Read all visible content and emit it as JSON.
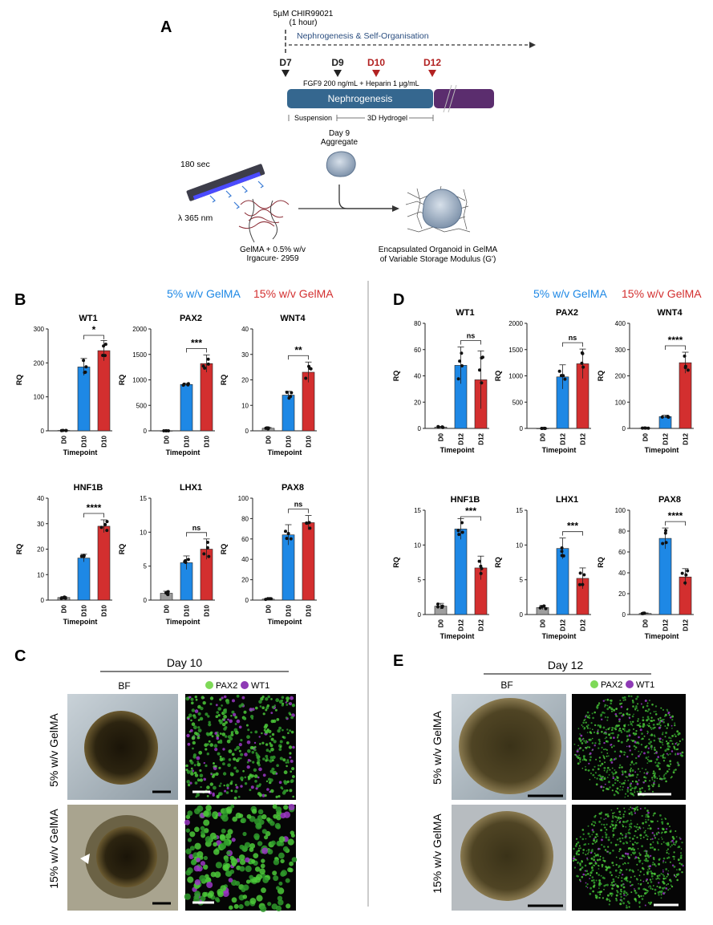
{
  "panel_letters": {
    "a": "A",
    "b": "B",
    "c": "C",
    "d": "D",
    "e": "E"
  },
  "schematic": {
    "chir_line1": "5µM CHIR99021",
    "chir_line2": "(1 hour)",
    "self_org": "Nephrogenesis & Self-Organisation",
    "days": [
      {
        "label": "D7",
        "color": "#222222"
      },
      {
        "label": "D9",
        "color": "#222222"
      },
      {
        "label": "D10",
        "color": "#b22222"
      },
      {
        "label": "D12",
        "color": "#b22222"
      }
    ],
    "fgf_text": "FGF9 200 ng/mL + Heparin 1 µg/mL",
    "bar_label": "Nephrogenesis",
    "suspension": "Suspension",
    "hydrogel": "3D Hydrogel",
    "aggregate_line1": "Day 9",
    "aggregate_line2": "Aggregate",
    "uv_time": "180 sec",
    "uv_wavelength": "λ 365 nm",
    "gelma_line1": "GelMA + 0.5% w/v",
    "gelma_line2": "Irgacure- 2959",
    "encap_line1": "Encapsulated Organoid in GelMA",
    "encap_line2": "of Variable Storage Modulus (G')"
  },
  "legend": {
    "five": "5% w/v GelMA",
    "fifteen": "15% w/v GelMA",
    "color_five": "#1e88e5",
    "color_fifteen": "#d32f2f"
  },
  "colors": {
    "grey": "#9e9e9e",
    "blue": "#1e88e5",
    "red": "#d32f2f"
  },
  "panel_c": {
    "day": "Day 10",
    "bf": "BF",
    "pax2": "PAX2",
    "wt1": "WT1",
    "row1": "5% w/v GelMA",
    "row2": "15% w/v GelMA"
  },
  "panel_e": {
    "day": "Day 12",
    "bf": "BF",
    "pax2": "PAX2",
    "wt1": "WT1",
    "row1": "5% w/v GelMA",
    "row2": "15% w/v GelMA"
  },
  "chart_data": [
    {
      "type": "bar",
      "panel": "B",
      "title": "WT1",
      "ylabel": "RQ",
      "xlabel": "Timepoint",
      "categories": [
        "D0",
        "D10",
        "D10"
      ],
      "values": [
        1,
        188,
        236
      ],
      "errors": [
        0.5,
        25,
        30
      ],
      "ylim": [
        0,
        300
      ],
      "ticks": [
        0,
        100,
        200,
        300
      ],
      "sig": "*"
    },
    {
      "type": "bar",
      "panel": "B",
      "title": "PAX2",
      "ylabel": "RQ",
      "xlabel": "Timepoint",
      "categories": [
        "D0",
        "D10",
        "D10"
      ],
      "values": [
        1,
        910,
        1320
      ],
      "errors": [
        0.5,
        20,
        170
      ],
      "ylim": [
        0,
        2000
      ],
      "ticks": [
        0,
        500,
        1000,
        1500,
        2000
      ],
      "sig": "***"
    },
    {
      "type": "bar",
      "panel": "B",
      "title": "WNT4",
      "ylabel": "RQ",
      "xlabel": "Timepoint",
      "categories": [
        "D0",
        "D10",
        "D10"
      ],
      "values": [
        1,
        14,
        23
      ],
      "errors": [
        0.3,
        1.5,
        4
      ],
      "ylim": [
        0,
        40
      ],
      "ticks": [
        0,
        10,
        20,
        30,
        40
      ],
      "sig": "**"
    },
    {
      "type": "bar",
      "panel": "B",
      "title": "HNF1B",
      "ylabel": "RQ",
      "xlabel": "Timepoint",
      "categories": [
        "D0",
        "D10",
        "D10"
      ],
      "values": [
        1,
        16.5,
        29
      ],
      "errors": [
        0.4,
        1.5,
        2.5
      ],
      "ylim": [
        0,
        40
      ],
      "ticks": [
        0,
        10,
        20,
        30,
        40
      ],
      "sig": "****"
    },
    {
      "type": "bar",
      "panel": "B",
      "title": "LHX1",
      "ylabel": "RQ",
      "xlabel": "Timepoint",
      "categories": [
        "D0",
        "D10",
        "D10"
      ],
      "values": [
        1,
        5.5,
        7.5
      ],
      "errors": [
        0.3,
        1,
        1.5
      ],
      "ylim": [
        0,
        15
      ],
      "ticks": [
        0,
        5,
        10,
        15
      ],
      "sig": "ns"
    },
    {
      "type": "bar",
      "panel": "B",
      "title": "PAX8",
      "ylabel": "RQ",
      "xlabel": "Timepoint",
      "categories": [
        "D0",
        "D10",
        "D10"
      ],
      "values": [
        1,
        64,
        76
      ],
      "errors": [
        0.5,
        10,
        7
      ],
      "ylim": [
        0,
        100
      ],
      "ticks": [
        0,
        20,
        40,
        60,
        80,
        100
      ],
      "sig": "ns"
    },
    {
      "type": "bar",
      "panel": "D",
      "title": "WT1",
      "ylabel": "RQ",
      "xlabel": "Timepoint",
      "categories": [
        "D0",
        "D12",
        "D12"
      ],
      "values": [
        1,
        48,
        37
      ],
      "errors": [
        0.5,
        14,
        22
      ],
      "ylim": [
        0,
        80
      ],
      "ticks": [
        0,
        20,
        40,
        60,
        80
      ],
      "sig": "ns"
    },
    {
      "type": "bar",
      "panel": "D",
      "title": "PAX2",
      "ylabel": "RQ",
      "xlabel": "Timepoint",
      "categories": [
        "D0",
        "D12",
        "D12"
      ],
      "values": [
        1,
        980,
        1230
      ],
      "errors": [
        0.5,
        230,
        280
      ],
      "ylim": [
        0,
        2000
      ],
      "ticks": [
        0,
        500,
        1000,
        1500,
        2000
      ],
      "sig": "ns"
    },
    {
      "type": "bar",
      "panel": "D",
      "title": "WNT4",
      "ylabel": "RQ",
      "xlabel": "Timepoint",
      "categories": [
        "D0",
        "D12",
        "D12"
      ],
      "values": [
        1,
        45,
        250
      ],
      "errors": [
        0.5,
        5,
        40
      ],
      "ylim": [
        0,
        400
      ],
      "ticks": [
        0,
        100,
        200,
        300,
        400
      ],
      "sig": "****"
    },
    {
      "type": "bar",
      "panel": "D",
      "title": "HNF1B",
      "ylabel": "RQ",
      "xlabel": "Timepoint",
      "categories": [
        "D0",
        "D12",
        "D12"
      ],
      "values": [
        1.2,
        12.3,
        6.7
      ],
      "errors": [
        0.4,
        1.5,
        1.7
      ],
      "ylim": [
        0,
        15
      ],
      "ticks": [
        0,
        5,
        10,
        15
      ],
      "sig": "***"
    },
    {
      "type": "bar",
      "panel": "D",
      "title": "LHX1",
      "ylabel": "RQ",
      "xlabel": "Timepoint",
      "categories": [
        "D0",
        "D12",
        "D12"
      ],
      "values": [
        1,
        9.5,
        5.2
      ],
      "errors": [
        0.3,
        1.5,
        1.5
      ],
      "ylim": [
        0,
        15
      ],
      "ticks": [
        0,
        5,
        10,
        15
      ],
      "sig": "***"
    },
    {
      "type": "bar",
      "panel": "D",
      "title": "PAX8",
      "ylabel": "RQ",
      "xlabel": "Timepoint",
      "categories": [
        "D0",
        "D12",
        "D12"
      ],
      "values": [
        1,
        73,
        36
      ],
      "errors": [
        0.5,
        10,
        8
      ],
      "ylim": [
        0,
        100
      ],
      "ticks": [
        0,
        20,
        40,
        60,
        80,
        100
      ],
      "sig": "****"
    }
  ]
}
